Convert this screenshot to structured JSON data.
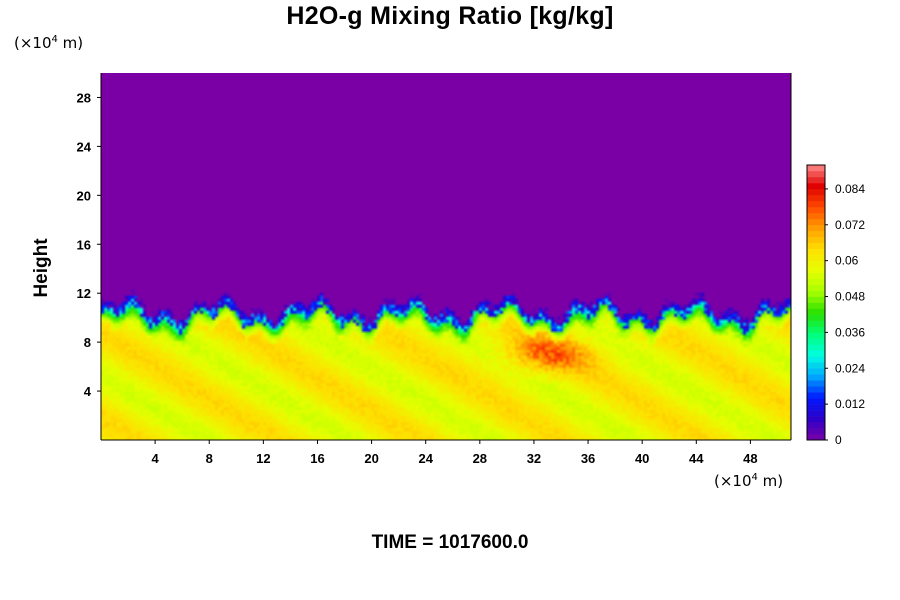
{
  "chart_data": {
    "type": "heatmap",
    "title": "H2O-g Mixing Ratio [kg/kg]",
    "ylabel": "Height",
    "xlabel": "",
    "x_unit": {
      "prefix": "(×10",
      "exp": "4",
      "suffix": " m)"
    },
    "y_unit": {
      "prefix": "(×10",
      "exp": "4",
      "suffix": " m)"
    },
    "xlim": [
      0,
      51
    ],
    "ylim": [
      0,
      30
    ],
    "x_ticks": [
      4,
      8,
      12,
      16,
      20,
      24,
      28,
      32,
      36,
      40,
      44,
      48
    ],
    "y_ticks": [
      4,
      8,
      12,
      16,
      20,
      24,
      28
    ],
    "colorbar": {
      "min": 0,
      "max": 0.092,
      "tick_values": [
        0,
        0.012,
        0.024,
        0.036,
        0.048,
        0.06,
        0.072,
        0.084
      ],
      "tick_labels": [
        "0",
        "0.012",
        "0.024",
        "0.036",
        "0.048",
        "0.06",
        "0.072",
        "0.084"
      ],
      "colormap": [
        "#7a00a6",
        "#2e00c8",
        "#0018ff",
        "#00a6ff",
        "#00ffe0",
        "#00ff7a",
        "#28e000",
        "#a6ff00",
        "#e6ff00",
        "#ffe000",
        "#ffa000",
        "#ff4a00",
        "#e00000",
        "#ff8a8a"
      ]
    },
    "field_summary": {
      "upper_region_value": 0,
      "lower_region_value": 0.062,
      "transition_height": [
        9,
        11
      ],
      "max_value_near": {
        "x": 33,
        "y": 7,
        "value": 0.075
      }
    }
  },
  "footer": {
    "time_label": "TIME = 1017600.0"
  }
}
